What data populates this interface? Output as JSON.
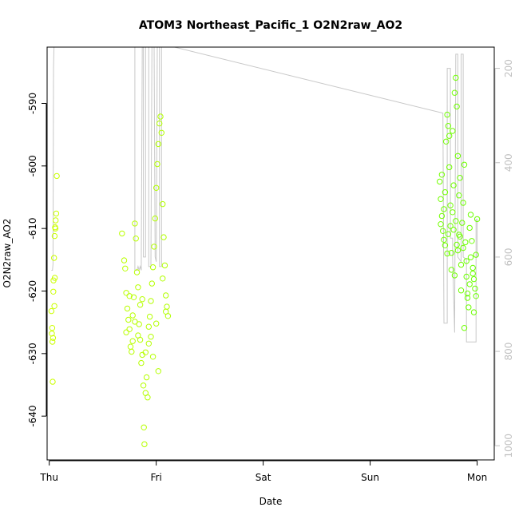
{
  "colors": {
    "depth_line": "#c8c8c8",
    "point_low": "#ccff00",
    "point_high": "#66ff00",
    "right_axis": "#c0c0c0"
  },
  "chart_data": {
    "type": "scatter",
    "title": "ATOM3 Northeast_Pacific_1 O2N2raw_AO2",
    "xlabel": "Date",
    "ylabel": "O2N2raw_AO2",
    "x_ticks": [
      "Thu",
      "Fri",
      "Sat",
      "Sun",
      "Mon"
    ],
    "xlim": [
      -0.02,
      4.16
    ],
    "ylim": [
      -647,
      -581
    ],
    "y_ticks": [
      -640,
      -630,
      -620,
      -610,
      -600,
      -590
    ],
    "y_tick_labels": [
      "-640",
      "-630",
      "-620",
      "-610",
      "-600",
      "-590"
    ],
    "y2_ticks": [
      200,
      400,
      600,
      800,
      1000
    ],
    "y2_tick_labels": [
      "200",
      "400",
      "600",
      "800",
      "1000"
    ],
    "y2lim": [
      1030,
      155
    ],
    "grid": false,
    "series": [
      {
        "values": [
          [
            0.02,
            -623.2
          ],
          [
            0.025,
            -626.8
          ],
          [
            0.03,
            -628.1
          ],
          [
            0.035,
            -627.5
          ],
          [
            0.028,
            -625.9
          ],
          [
            0.032,
            -634.5
          ],
          [
            0.04,
            -618.3
          ],
          [
            0.045,
            -614.7
          ],
          [
            0.05,
            -611.2
          ],
          [
            0.055,
            -609.8
          ],
          [
            0.06,
            -608.7
          ],
          [
            0.065,
            -607.6
          ],
          [
            0.07,
            -601.6
          ],
          [
            0.038,
            -620.1
          ],
          [
            0.048,
            -622.4
          ],
          [
            0.052,
            -617.9
          ],
          [
            0.058,
            -610.0
          ],
          [
            0.68,
            -610.8
          ],
          [
            0.7,
            -615.1
          ],
          [
            0.71,
            -616.4
          ],
          [
            0.72,
            -620.3
          ],
          [
            0.73,
            -622.8
          ],
          [
            0.74,
            -624.6
          ],
          [
            0.75,
            -626.1
          ],
          [
            0.76,
            -628.9
          ],
          [
            0.77,
            -629.7
          ],
          [
            0.78,
            -623.9
          ],
          [
            0.79,
            -621.0
          ],
          [
            0.8,
            -609.2
          ],
          [
            0.81,
            -611.6
          ],
          [
            0.82,
            -617.0
          ],
          [
            0.83,
            -619.4
          ],
          [
            0.84,
            -625.3
          ],
          [
            0.85,
            -627.8
          ],
          [
            0.86,
            -631.5
          ],
          [
            0.87,
            -630.2
          ],
          [
            0.88,
            -635.1
          ],
          [
            0.885,
            -641.8
          ],
          [
            0.89,
            -644.5
          ],
          [
            0.9,
            -636.3
          ],
          [
            0.91,
            -633.8
          ],
          [
            0.92,
            -637.0
          ],
          [
            0.93,
            -628.4
          ],
          [
            0.94,
            -624.1
          ],
          [
            0.95,
            -621.6
          ],
          [
            0.96,
            -618.8
          ],
          [
            0.97,
            -616.2
          ],
          [
            0.98,
            -612.9
          ],
          [
            0.99,
            -608.4
          ],
          [
            1.0,
            -603.5
          ],
          [
            1.01,
            -599.7
          ],
          [
            1.02,
            -596.5
          ],
          [
            1.03,
            -593.2
          ],
          [
            1.04,
            -592.1
          ],
          [
            1.05,
            -594.7
          ],
          [
            1.06,
            -606.1
          ],
          [
            1.07,
            -611.4
          ],
          [
            1.08,
            -615.9
          ],
          [
            1.09,
            -620.7
          ],
          [
            1.1,
            -622.5
          ],
          [
            1.11,
            -624.0
          ],
          [
            1.0,
            -625.2
          ],
          [
            0.95,
            -627.3
          ],
          [
            0.9,
            -629.8
          ],
          [
            0.85,
            -622.2
          ],
          [
            0.8,
            -624.9
          ],
          [
            0.75,
            -620.8
          ],
          [
            0.72,
            -626.6
          ],
          [
            0.97,
            -630.5
          ],
          [
            1.02,
            -632.8
          ],
          [
            0.93,
            -625.7
          ],
          [
            0.87,
            -621.3
          ],
          [
            0.83,
            -627.1
          ],
          [
            0.78,
            -628.0
          ],
          [
            1.06,
            -618.0
          ],
          [
            1.09,
            -623.3
          ],
          [
            3.65,
            -602.5
          ],
          [
            3.66,
            -605.3
          ],
          [
            3.67,
            -608.0
          ],
          [
            3.68,
            -610.4
          ],
          [
            3.69,
            -606.9
          ],
          [
            3.7,
            -604.2
          ],
          [
            3.71,
            -596.1
          ],
          [
            3.72,
            -591.8
          ],
          [
            3.73,
            -593.6
          ],
          [
            3.74,
            -600.2
          ],
          [
            3.75,
            -609.6
          ],
          [
            3.76,
            -613.9
          ],
          [
            3.77,
            -607.4
          ],
          [
            3.78,
            -603.1
          ],
          [
            3.79,
            -588.3
          ],
          [
            3.8,
            -585.9
          ],
          [
            3.81,
            -590.5
          ],
          [
            3.82,
            -598.4
          ],
          [
            3.83,
            -604.7
          ],
          [
            3.84,
            -611.3
          ],
          [
            3.85,
            -615.8
          ],
          [
            3.86,
            -609.1
          ],
          [
            3.87,
            -605.9
          ],
          [
            3.88,
            -599.8
          ],
          [
            3.89,
            -612.2
          ],
          [
            3.9,
            -617.7
          ],
          [
            3.91,
            -620.4
          ],
          [
            3.92,
            -622.6
          ],
          [
            3.93,
            -618.9
          ],
          [
            3.94,
            -614.6
          ],
          [
            3.95,
            -612.0
          ],
          [
            3.96,
            -616.3
          ],
          [
            3.97,
            -618.1
          ],
          [
            3.98,
            -619.6
          ],
          [
            3.99,
            -614.2
          ],
          [
            4.0,
            -608.5
          ],
          [
            3.67,
            -601.4
          ],
          [
            3.7,
            -612.7
          ],
          [
            3.73,
            -610.9
          ],
          [
            3.76,
            -616.6
          ],
          [
            3.79,
            -617.5
          ],
          [
            3.82,
            -613.5
          ],
          [
            3.85,
            -619.9
          ],
          [
            3.88,
            -625.9
          ],
          [
            3.91,
            -621.1
          ],
          [
            3.94,
            -607.8
          ],
          [
            3.97,
            -623.4
          ],
          [
            3.66,
            -609.3
          ],
          [
            3.69,
            -611.8
          ],
          [
            3.72,
            -614.0
          ],
          [
            3.75,
            -606.3
          ],
          [
            3.78,
            -610.2
          ],
          [
            3.81,
            -612.6
          ],
          [
            3.84,
            -601.9
          ],
          [
            3.87,
            -613.1
          ],
          [
            3.9,
            -615.2
          ],
          [
            3.93,
            -609.9
          ],
          [
            3.96,
            -617.2
          ],
          [
            3.99,
            -620.8
          ],
          [
            3.74,
            -595.2
          ],
          [
            3.77,
            -594.4
          ],
          [
            3.8,
            -608.8
          ],
          [
            3.83,
            -611.0
          ]
        ]
      },
      {
        "values": [
          [
            0.02,
            628
          ],
          [
            0.03,
            628
          ],
          [
            0.035,
            615
          ],
          [
            0.04,
            200
          ],
          [
            0.045,
            150
          ],
          [
            0.8,
            150
          ],
          [
            0.8,
            628
          ],
          [
            0.82,
            628
          ],
          [
            0.83,
            620
          ],
          [
            0.84,
            628
          ],
          [
            0.85,
            620
          ],
          [
            0.86,
            628
          ],
          [
            0.87,
            150
          ],
          [
            0.88,
            150
          ],
          [
            0.88,
            600
          ],
          [
            0.9,
            600
          ],
          [
            0.9,
            150
          ],
          [
            0.93,
            150
          ],
          [
            0.93,
            620
          ],
          [
            0.95,
            620
          ],
          [
            0.96,
            150
          ],
          [
            0.98,
            150
          ],
          [
            0.99,
            600
          ],
          [
            1.0,
            610
          ],
          [
            1.01,
            150
          ],
          [
            1.03,
            150
          ],
          [
            1.03,
            620
          ],
          [
            1.05,
            620
          ],
          [
            1.05,
            150
          ],
          [
            1.08,
            150
          ],
          [
            3.68,
            295
          ],
          [
            3.69,
            740
          ],
          [
            3.72,
            740
          ],
          [
            3.72,
            200
          ],
          [
            3.75,
            200
          ],
          [
            3.75,
            560
          ],
          [
            3.77,
            560
          ],
          [
            3.77,
            600
          ],
          [
            3.79,
            760
          ],
          [
            3.8,
            170
          ],
          [
            3.82,
            170
          ],
          [
            3.82,
            600
          ],
          [
            3.85,
            610
          ],
          [
            3.85,
            170
          ],
          [
            3.87,
            170
          ],
          [
            3.87,
            600
          ],
          [
            3.9,
            605
          ],
          [
            3.9,
            780
          ],
          [
            3.99,
            780
          ],
          [
            3.99,
            520
          ],
          [
            4.0,
            520
          ],
          [
            4.0,
            600
          ]
        ]
      }
    ]
  }
}
